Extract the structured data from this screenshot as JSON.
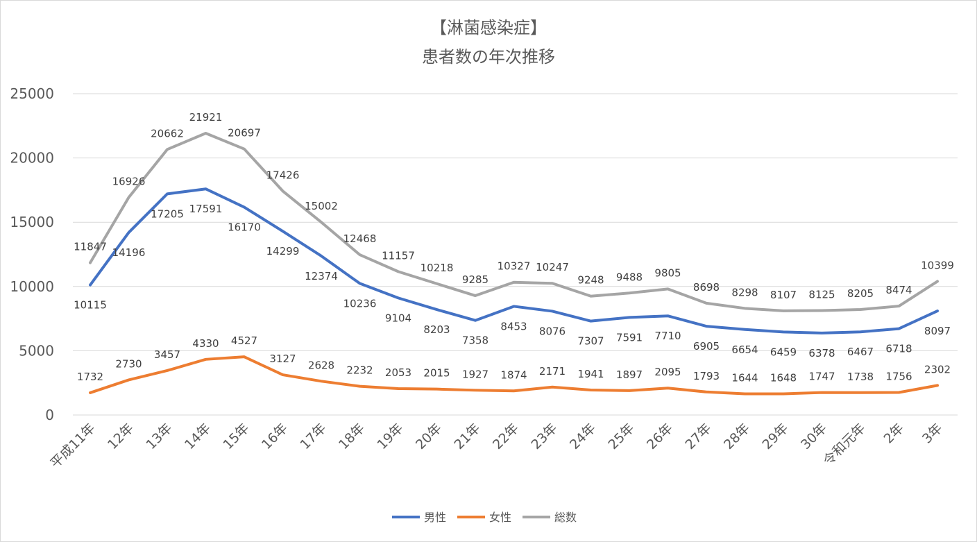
{
  "chart_data": {
    "type": "line",
    "title": [
      "【淋菌感染症】",
      "患者数の年次推移"
    ],
    "xlabel": "",
    "ylabel": "",
    "ylim": [
      0,
      25000
    ],
    "yticks": [
      0,
      5000,
      10000,
      15000,
      20000,
      25000
    ],
    "grid": true,
    "legend_position": "bottom",
    "categories": [
      "平成11年",
      "12年",
      "13年",
      "14年",
      "15年",
      "16年",
      "17年",
      "18年",
      "19年",
      "20年",
      "21年",
      "22年",
      "23年",
      "24年",
      "25年",
      "26年",
      "27年",
      "28年",
      "29年",
      "30年",
      "令和元年",
      "2年",
      "3年"
    ],
    "series": [
      {
        "name": "男性",
        "color": "#4472c4",
        "label_pos": "below",
        "values": [
          10115,
          14196,
          17205,
          17591,
          16170,
          14299,
          12374,
          10236,
          9104,
          8203,
          7358,
          8453,
          8076,
          7307,
          7591,
          7710,
          6905,
          6654,
          6459,
          6378,
          6467,
          6718,
          8097
        ]
      },
      {
        "name": "女性",
        "color": "#ed7d31",
        "label_pos": "above",
        "values": [
          1732,
          2730,
          3457,
          4330,
          4527,
          3127,
          2628,
          2232,
          2053,
          2015,
          1927,
          1874,
          2171,
          1941,
          1897,
          2095,
          1793,
          1644,
          1648,
          1747,
          1738,
          1756,
          2302
        ]
      },
      {
        "name": "総数",
        "color": "#a5a5a5",
        "label_pos": "above",
        "values": [
          11847,
          16926,
          20662,
          21921,
          20697,
          17426,
          15002,
          12468,
          11157,
          10218,
          9285,
          10327,
          10247,
          9248,
          9488,
          9805,
          8698,
          8298,
          8107,
          8125,
          8205,
          8474,
          10399
        ]
      }
    ]
  }
}
